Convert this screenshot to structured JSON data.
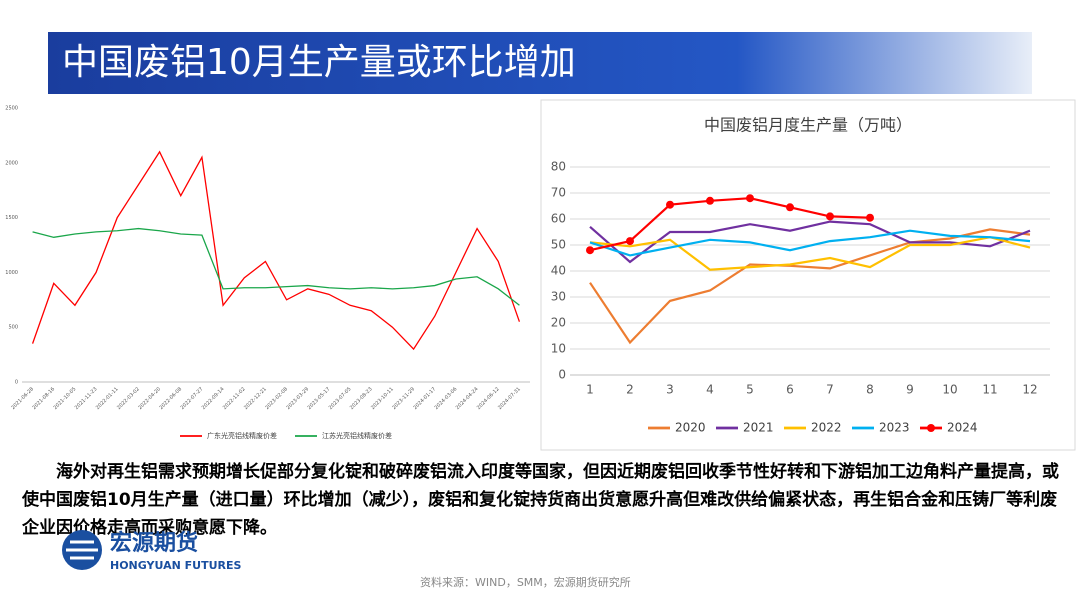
{
  "header": {
    "title": "中国废铝10月生产量或环比增加"
  },
  "chart_data": [
    {
      "type": "line",
      "categories": [
        "2021-06-28",
        "2021-08-16",
        "2021-10-05",
        "2021-11-23",
        "2022-01-11",
        "2022-03-02",
        "2022-04-20",
        "2022-06-08",
        "2022-07-27",
        "2022-09-14",
        "2022-11-02",
        "2022-12-21",
        "2023-02-08",
        "2023-03-29",
        "2023-05-17",
        "2023-07-05",
        "2023-08-23",
        "2023-10-11",
        "2023-11-29",
        "2024-01-17",
        "2024-03-06",
        "2024-04-24",
        "2024-06-12",
        "2024-07-31"
      ],
      "series": [
        {
          "name": "广东光亮铝线精废价差",
          "color": "#ff0000",
          "values": [
            350,
            900,
            700,
            1000,
            1500,
            1800,
            2100,
            1700,
            2050,
            700,
            950,
            1100,
            750,
            850,
            800,
            700,
            650,
            500,
            300,
            600,
            1000,
            1400,
            1100,
            550
          ]
        },
        {
          "name": "江苏光亮铝线精废价差",
          "color": "#1aa64a",
          "values": [
            1370,
            1320,
            1350,
            1370,
            1380,
            1400,
            1380,
            1350,
            1340,
            850,
            860,
            860,
            870,
            880,
            860,
            850,
            860,
            850,
            860,
            880,
            940,
            960,
            850,
            700
          ]
        }
      ],
      "ylim": [
        0,
        2500
      ],
      "yticks": [
        0,
        500,
        1000,
        1500,
        2000,
        2500
      ]
    },
    {
      "type": "line",
      "title": "中国废铝月度生产量（万吨）",
      "categories": [
        1,
        2,
        3,
        4,
        5,
        6,
        7,
        8,
        9,
        10,
        11,
        12
      ],
      "series": [
        {
          "name": "2020",
          "color": "#ed7d31",
          "values": [
            35.5,
            12.5,
            28.5,
            32.5,
            42.5,
            42,
            41,
            46,
            51,
            52.5,
            56,
            54
          ]
        },
        {
          "name": "2021",
          "color": "#7030a0",
          "values": [
            57,
            43.5,
            55,
            55,
            58,
            55.5,
            59,
            58,
            51,
            51,
            49.5,
            55.5
          ]
        },
        {
          "name": "2022",
          "color": "#ffc000",
          "values": [
            51,
            49.5,
            52,
            40.5,
            41.5,
            42.5,
            45,
            41.5,
            50,
            50,
            53,
            49
          ]
        },
        {
          "name": "2023",
          "color": "#00b0f0",
          "values": [
            51,
            46,
            49,
            52,
            51,
            48,
            51.5,
            53,
            55.5,
            53.5,
            53,
            51.5
          ]
        },
        {
          "name": "2024",
          "color": "#ff0000",
          "markers": true,
          "values": [
            48,
            51.5,
            65.5,
            67,
            68,
            64.5,
            61,
            60.5,
            null,
            null,
            null,
            null
          ]
        }
      ],
      "ylim": [
        0,
        80
      ],
      "yticks": [
        0,
        10,
        20,
        30,
        40,
        50,
        60,
        70,
        80
      ]
    }
  ],
  "body": {
    "paragraph": "海外对再生铝需求预期增长促部分复化锭和破碎废铝流入印度等国家，但因近期废铝回收季节性好转和下游铝加工边角料产量提高，或使中国废铝10月生产量（进口量）环比增加（减少），废铝和复化锭持货商出货意愿升高但难改供给偏紧状态，再生铝合金和压铸厂等利废企业因价格走高而采购意愿下降。"
  },
  "footer": {
    "logo_cn": "宏源期货",
    "logo_en": "HONGYUAN FUTURES",
    "source": "资料来源：WIND，SMM，宏源期货研究所"
  }
}
